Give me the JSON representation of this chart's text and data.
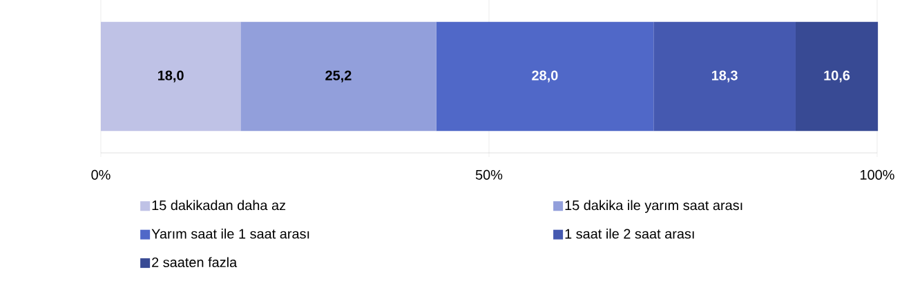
{
  "chart_data": {
    "type": "bar",
    "orientation": "horizontal",
    "stacked": true,
    "categories": [
      null
    ],
    "series": [
      {
        "name": "15 dakikadan daha az",
        "color": "#bfc2e6",
        "values": [
          18.0
        ],
        "value_labels": [
          "18,0"
        ]
      },
      {
        "name": "15 dakika ile yarım saat arası",
        "color": "#929fdb",
        "values": [
          25.2
        ],
        "value_labels": [
          "25,2"
        ]
      },
      {
        "name": "Yarım saat ile 1 saat arası",
        "color": "#5068c8",
        "values": [
          28.0
        ],
        "value_labels": [
          "28,0"
        ]
      },
      {
        "name": "1 saat ile 2 saat arası",
        "color": "#4559b0",
        "values": [
          18.3
        ],
        "value_labels": [
          "18,3"
        ]
      },
      {
        "name": "2 saaten fazla",
        "color": "#384a94",
        "values": [
          10.6
        ],
        "value_labels": [
          "10,6"
        ]
      }
    ],
    "xlim": [
      0,
      100
    ],
    "xticks": [
      {
        "value": 0,
        "label": "0%"
      },
      {
        "value": 50,
        "label": "50%"
      },
      {
        "value": 100,
        "label": "100%"
      }
    ],
    "grid": "x",
    "legend": "bottom",
    "tick_labels": "x"
  }
}
